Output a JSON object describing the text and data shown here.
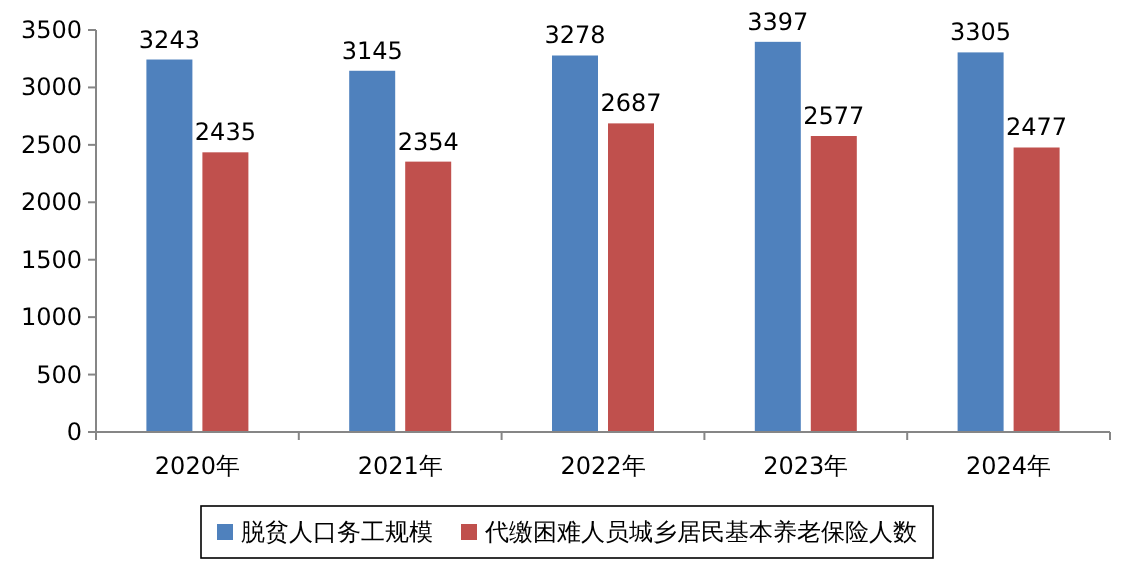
{
  "chart_data": {
    "type": "bar",
    "categories": [
      "2020年",
      "2021年",
      "2022年",
      "2023年",
      "2024年"
    ],
    "series": [
      {
        "name": "脱贫人口务工规模",
        "color": "#4f81bd",
        "values": [
          3243,
          3145,
          3278,
          3397,
          3305
        ]
      },
      {
        "name": "代缴困难人员城乡居民基本养老保险人数",
        "color": "#c0504d",
        "values": [
          2435,
          2354,
          2687,
          2577,
          2477
        ]
      }
    ],
    "ylim": [
      0,
      3500
    ],
    "yticks": [
      0,
      500,
      1000,
      1500,
      2000,
      2500,
      3000,
      3500
    ],
    "data_labels": true,
    "grid": false,
    "legend": "bottom"
  }
}
